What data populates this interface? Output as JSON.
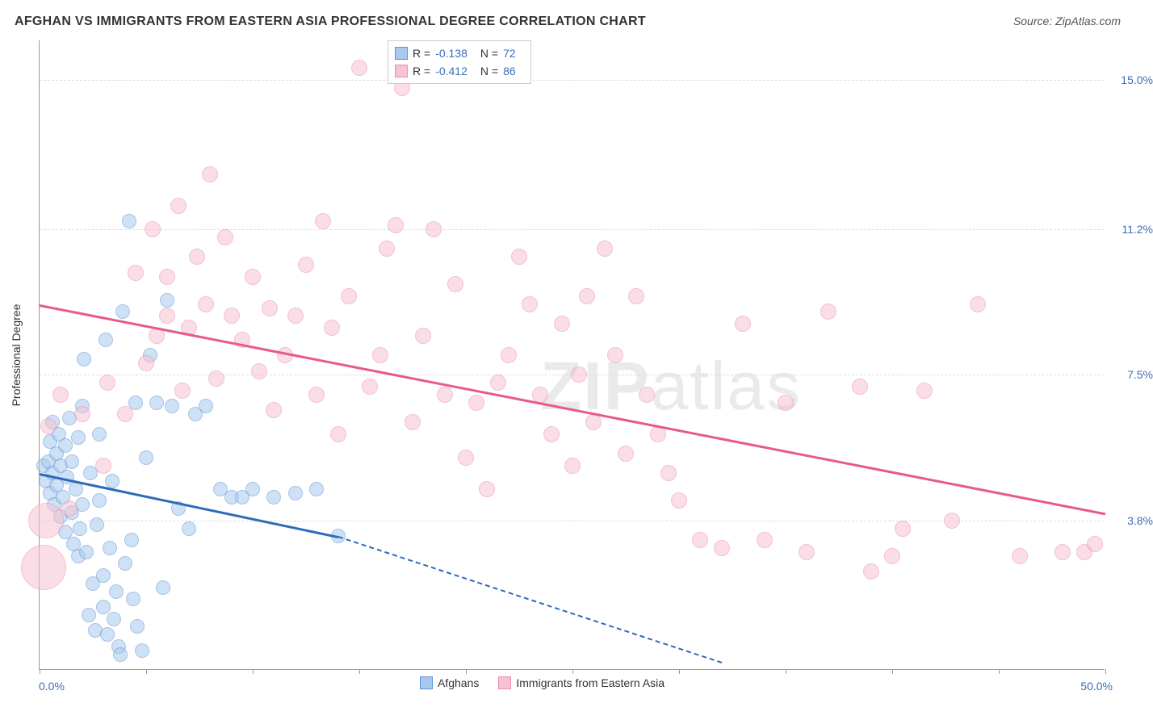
{
  "title": "AFGHAN VS IMMIGRANTS FROM EASTERN ASIA PROFESSIONAL DEGREE CORRELATION CHART",
  "source_label": "Source: ",
  "source_name": "ZipAtlas.com",
  "y_axis_title": "Professional Degree",
  "watermark_bold": "ZIP",
  "watermark_light": "atlas",
  "chart": {
    "type": "scatter",
    "background_color": "#ffffff",
    "grid_color": "#dddddd",
    "axis_color": "#999999",
    "xlim": [
      0,
      50
    ],
    "ylim": [
      0,
      16
    ],
    "x_tick_positions": [
      0,
      5,
      10,
      15,
      20,
      25,
      30,
      35,
      40,
      45,
      50
    ],
    "x_label_min": "0.0%",
    "x_label_max": "50.0%",
    "y_gridlines": [
      {
        "value": 3.8,
        "label": "3.8%"
      },
      {
        "value": 7.5,
        "label": "7.5%"
      },
      {
        "value": 11.2,
        "label": "11.2%"
      },
      {
        "value": 15.0,
        "label": "15.0%"
      }
    ],
    "series": [
      {
        "name": "Afghans",
        "fill_color": "#a9c9ec",
        "stroke_color": "#5a93d6",
        "fill_opacity": 0.55,
        "marker_radius": 9,
        "trend": {
          "solid": {
            "x1": 0,
            "y1": 5.0,
            "x2": 14,
            "y2": 3.4,
            "color": "#2e6bb8"
          },
          "dashed": {
            "x1": 14,
            "y1": 3.4,
            "x2": 32,
            "y2": 0.2,
            "color": "#2e6bb8"
          }
        },
        "stats": {
          "R": "-0.138",
          "N": "72"
        },
        "points": [
          [
            0.2,
            5.2
          ],
          [
            0.3,
            4.8
          ],
          [
            0.4,
            5.3
          ],
          [
            0.5,
            4.5
          ],
          [
            0.5,
            5.8
          ],
          [
            0.6,
            5.0
          ],
          [
            0.6,
            6.3
          ],
          [
            0.7,
            4.2
          ],
          [
            0.8,
            5.5
          ],
          [
            0.8,
            4.7
          ],
          [
            0.9,
            6.0
          ],
          [
            1.0,
            5.2
          ],
          [
            1.0,
            3.9
          ],
          [
            1.1,
            4.4
          ],
          [
            1.2,
            5.7
          ],
          [
            1.2,
            3.5
          ],
          [
            1.3,
            4.9
          ],
          [
            1.4,
            6.4
          ],
          [
            1.5,
            4.0
          ],
          [
            1.5,
            5.3
          ],
          [
            1.6,
            3.2
          ],
          [
            1.7,
            4.6
          ],
          [
            1.8,
            5.9
          ],
          [
            1.8,
            2.9
          ],
          [
            1.9,
            3.6
          ],
          [
            2.0,
            4.2
          ],
          [
            2.0,
            6.7
          ],
          [
            2.1,
            7.9
          ],
          [
            2.2,
            3.0
          ],
          [
            2.3,
            1.4
          ],
          [
            2.4,
            5.0
          ],
          [
            2.5,
            2.2
          ],
          [
            2.6,
            1.0
          ],
          [
            2.7,
            3.7
          ],
          [
            2.8,
            4.3
          ],
          [
            2.8,
            6.0
          ],
          [
            3.0,
            1.6
          ],
          [
            3.0,
            2.4
          ],
          [
            3.1,
            8.4
          ],
          [
            3.2,
            0.9
          ],
          [
            3.3,
            3.1
          ],
          [
            3.4,
            4.8
          ],
          [
            3.5,
            1.3
          ],
          [
            3.6,
            2.0
          ],
          [
            3.7,
            0.6
          ],
          [
            3.8,
            0.4
          ],
          [
            3.9,
            9.1
          ],
          [
            4.0,
            2.7
          ],
          [
            4.2,
            11.4
          ],
          [
            4.3,
            3.3
          ],
          [
            4.4,
            1.8
          ],
          [
            4.5,
            6.8
          ],
          [
            4.6,
            1.1
          ],
          [
            4.8,
            0.5
          ],
          [
            5.0,
            5.4
          ],
          [
            5.2,
            8.0
          ],
          [
            5.5,
            6.8
          ],
          [
            5.8,
            2.1
          ],
          [
            6.0,
            9.4
          ],
          [
            6.2,
            6.7
          ],
          [
            6.5,
            4.1
          ],
          [
            7.0,
            3.6
          ],
          [
            7.3,
            6.5
          ],
          [
            7.8,
            6.7
          ],
          [
            8.5,
            4.6
          ],
          [
            9.0,
            4.4
          ],
          [
            9.5,
            4.4
          ],
          [
            10.0,
            4.6
          ],
          [
            11.0,
            4.4
          ],
          [
            12.0,
            4.5
          ],
          [
            13.0,
            4.6
          ],
          [
            14.0,
            3.4
          ]
        ]
      },
      {
        "name": "Immigrants from Eastern Asia",
        "fill_color": "#f6c3d2",
        "stroke_color": "#e890ad",
        "fill_opacity": 0.55,
        "marker_radius": 10,
        "trend": {
          "solid": {
            "x1": 0,
            "y1": 9.3,
            "x2": 50,
            "y2": 4.0,
            "color": "#e75a8a"
          }
        },
        "stats": {
          "R": "-0.412",
          "N": "86"
        },
        "points": [
          [
            0.4,
            6.2
          ],
          [
            1.0,
            7.0
          ],
          [
            1.4,
            4.1
          ],
          [
            2.0,
            6.5
          ],
          [
            3.0,
            5.2
          ],
          [
            3.2,
            7.3
          ],
          [
            4.0,
            6.5
          ],
          [
            4.5,
            10.1
          ],
          [
            5.0,
            7.8
          ],
          [
            5.3,
            11.2
          ],
          [
            5.5,
            8.5
          ],
          [
            6.0,
            9.0
          ],
          [
            6.0,
            10.0
          ],
          [
            6.5,
            11.8
          ],
          [
            6.7,
            7.1
          ],
          [
            7.0,
            8.7
          ],
          [
            7.4,
            10.5
          ],
          [
            7.8,
            9.3
          ],
          [
            8.0,
            12.6
          ],
          [
            8.3,
            7.4
          ],
          [
            8.7,
            11.0
          ],
          [
            9.0,
            9.0
          ],
          [
            9.5,
            8.4
          ],
          [
            10.0,
            10.0
          ],
          [
            10.3,
            7.6
          ],
          [
            10.8,
            9.2
          ],
          [
            11.0,
            6.6
          ],
          [
            11.5,
            8.0
          ],
          [
            12.0,
            9.0
          ],
          [
            12.5,
            10.3
          ],
          [
            13.0,
            7.0
          ],
          [
            13.3,
            11.4
          ],
          [
            13.7,
            8.7
          ],
          [
            14.0,
            6.0
          ],
          [
            14.5,
            9.5
          ],
          [
            15.0,
            15.3
          ],
          [
            15.5,
            7.2
          ],
          [
            16.0,
            8.0
          ],
          [
            16.3,
            10.7
          ],
          [
            16.7,
            11.3
          ],
          [
            17.0,
            14.8
          ],
          [
            17.5,
            6.3
          ],
          [
            18.0,
            8.5
          ],
          [
            18.5,
            11.2
          ],
          [
            19.0,
            7.0
          ],
          [
            19.5,
            9.8
          ],
          [
            20.0,
            5.4
          ],
          [
            20.5,
            6.8
          ],
          [
            21.0,
            4.6
          ],
          [
            21.5,
            7.3
          ],
          [
            22.0,
            8.0
          ],
          [
            22.5,
            10.5
          ],
          [
            23.0,
            9.3
          ],
          [
            23.5,
            7.0
          ],
          [
            24.0,
            6.0
          ],
          [
            24.5,
            8.8
          ],
          [
            25.0,
            5.2
          ],
          [
            25.3,
            7.5
          ],
          [
            25.7,
            9.5
          ],
          [
            26.0,
            6.3
          ],
          [
            26.5,
            10.7
          ],
          [
            27.0,
            8.0
          ],
          [
            27.5,
            5.5
          ],
          [
            28.0,
            9.5
          ],
          [
            28.5,
            7.0
          ],
          [
            29.0,
            6.0
          ],
          [
            29.5,
            5.0
          ],
          [
            30.0,
            4.3
          ],
          [
            31.0,
            3.3
          ],
          [
            32.0,
            3.1
          ],
          [
            33.0,
            8.8
          ],
          [
            34.0,
            3.3
          ],
          [
            35.0,
            6.8
          ],
          [
            36.0,
            3.0
          ],
          [
            37.0,
            9.1
          ],
          [
            38.5,
            7.2
          ],
          [
            39.0,
            2.5
          ],
          [
            40.0,
            2.9
          ],
          [
            40.5,
            3.6
          ],
          [
            41.5,
            7.1
          ],
          [
            42.8,
            3.8
          ],
          [
            44.0,
            9.3
          ],
          [
            46.0,
            2.9
          ],
          [
            48.0,
            3.0
          ],
          [
            49.0,
            3.0
          ],
          [
            49.5,
            3.2
          ]
        ],
        "large_points": [
          {
            "x": 0.3,
            "y": 3.8,
            "r": 22
          },
          {
            "x": 0.2,
            "y": 2.6,
            "r": 28
          }
        ]
      }
    ],
    "stats_legend_labels": {
      "R": "R =",
      "N": "N ="
    },
    "bottom_legend": [
      {
        "label": "Afghans",
        "fill": "#a9c9ec",
        "stroke": "#5a93d6"
      },
      {
        "label": "Immigrants from Eastern Asia",
        "fill": "#f6c3d2",
        "stroke": "#e890ad"
      }
    ]
  }
}
